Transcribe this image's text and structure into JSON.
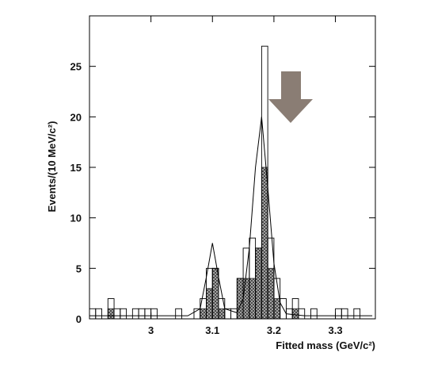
{
  "chart_data": {
    "type": "histogram",
    "xlabel": "Fitted mass  (GeV/c²)",
    "ylabel": "Events/(10 MeV/c²)",
    "bins": [
      2.9,
      2.91,
      2.92,
      2.93,
      2.94,
      2.95,
      2.96,
      2.97,
      2.98,
      2.99,
      3.0,
      3.01,
      3.02,
      3.03,
      3.04,
      3.05,
      3.06,
      3.07,
      3.08,
      3.09,
      3.1,
      3.11,
      3.12,
      3.13,
      3.14,
      3.15,
      3.16,
      3.17,
      3.18,
      3.19,
      3.2,
      3.21,
      3.22,
      3.23,
      3.24,
      3.25,
      3.26,
      3.27,
      3.28,
      3.29,
      3.3,
      3.31,
      3.32,
      3.33,
      3.34,
      3.35,
      3.36
    ],
    "series": [
      {
        "color": "#000000",
        "fill": "none",
        "values": [
          1,
          1,
          0,
          2,
          1,
          1,
          0,
          1,
          1,
          1,
          1,
          0,
          0,
          0,
          1,
          0,
          0,
          1,
          2,
          5,
          5,
          2,
          1,
          1,
          4,
          7,
          8,
          7,
          27,
          8,
          4,
          2,
          1,
          2,
          1,
          0,
          1,
          0,
          0,
          0,
          1,
          1,
          0,
          1,
          0,
          0
        ]
      },
      {
        "color": "#333333",
        "fill": "hatch",
        "values": [
          0,
          0,
          0,
          1,
          0,
          0,
          0,
          0,
          0,
          0,
          0,
          0,
          0,
          0,
          0,
          0,
          0,
          0,
          1,
          3,
          5,
          1,
          0,
          0,
          4,
          4,
          4,
          7,
          15,
          5,
          2,
          0,
          0,
          1,
          0,
          0,
          0,
          0,
          0,
          0,
          0,
          0,
          0,
          0,
          0,
          0
        ]
      }
    ],
    "fit": {
      "type": "line",
      "color": "#000000",
      "x": [
        2.9,
        3.0,
        3.06,
        3.08,
        3.09,
        3.1,
        3.11,
        3.12,
        3.14,
        3.15,
        3.16,
        3.17,
        3.18,
        3.19,
        3.2,
        3.21,
        3.22,
        3.25,
        3.36
      ],
      "values": [
        0.3,
        0.3,
        0.3,
        1.0,
        4.1,
        7.5,
        4.1,
        1.0,
        0.6,
        2.0,
        7.0,
        15.0,
        20,
        13,
        5.5,
        1.6,
        0.5,
        0.3,
        0.3
      ]
    },
    "xlim": [
      2.9,
      3.365
    ],
    "ylim": [
      0,
      30
    ],
    "xticks": [
      3,
      3.1,
      3.2,
      3.3
    ],
    "yticks": [
      0,
      5,
      10,
      15,
      20,
      25
    ]
  }
}
